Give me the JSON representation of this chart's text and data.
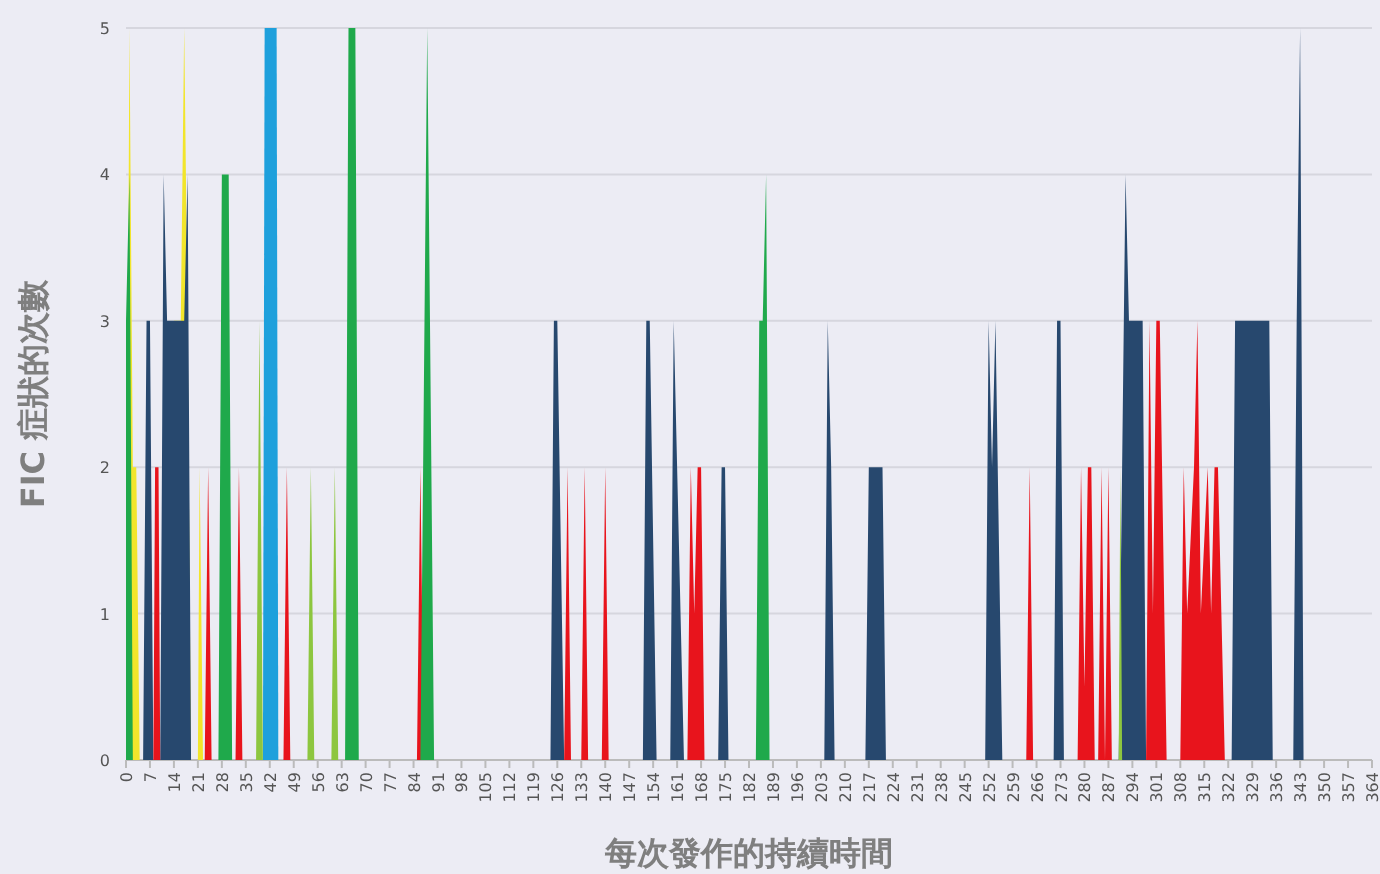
{
  "chart_data": {
    "type": "area",
    "xlabel": "每次發作的持續時間",
    "ylabel": "FIC 症狀的次數",
    "xlim": [
      0,
      364
    ],
    "ylim": [
      0,
      5
    ],
    "yticks": [
      0,
      1,
      2,
      3,
      4,
      5
    ],
    "xticks": [
      0,
      7,
      14,
      21,
      28,
      35,
      42,
      49,
      56,
      63,
      70,
      77,
      84,
      91,
      98,
      105,
      112,
      119,
      126,
      133,
      140,
      147,
      154,
      161,
      168,
      175,
      182,
      189,
      196,
      203,
      210,
      217,
      224,
      231,
      238,
      245,
      252,
      259,
      266,
      273,
      280,
      287,
      294,
      301,
      308,
      315,
      322,
      329,
      336,
      343,
      350,
      357,
      364
    ],
    "grid": "y",
    "series": [
      {
        "color": "#f2e52b",
        "x": [
          0,
          1,
          2,
          3,
          4,
          13,
          14,
          16,
          17,
          18,
          19,
          21,
          21.5,
          22.5
        ],
        "values": [
          0,
          5,
          2,
          2,
          0,
          0,
          3,
          3,
          5,
          3,
          0,
          0,
          2,
          0
        ]
      },
      {
        "color": "#27486e",
        "x": [
          5,
          6,
          7,
          8,
          10,
          11,
          12,
          17,
          18,
          19,
          124,
          125,
          126,
          128,
          151,
          152,
          153,
          155,
          159,
          160,
          161,
          163,
          173,
          174,
          175,
          176,
          204,
          205,
          206,
          207,
          216,
          217,
          221,
          222,
          251,
          252,
          253,
          254,
          256,
          271,
          272,
          273,
          274,
          290,
          292,
          293,
          297,
          298,
          323,
          324,
          334,
          335,
          341,
          342,
          343,
          344
        ],
        "values": [
          0,
          3,
          3,
          0,
          0,
          4,
          3,
          3,
          4,
          0,
          0,
          3,
          3,
          0,
          0,
          3,
          3,
          0,
          0,
          3,
          2,
          0,
          0,
          2,
          2,
          0,
          0,
          3,
          2,
          0,
          0,
          2,
          2,
          0,
          0,
          3,
          2,
          3,
          0,
          0,
          3,
          3,
          0,
          0,
          4,
          3,
          3,
          0,
          0,
          3,
          3,
          0,
          0,
          3,
          5,
          0
        ]
      },
      {
        "color": "#e8141c",
        "x": [
          8,
          8.5,
          9.5,
          10,
          23,
          24,
          25,
          32,
          33,
          34,
          46,
          47,
          48,
          85,
          86,
          87,
          128,
          129,
          130,
          133,
          134,
          135,
          139,
          140,
          141,
          164,
          165,
          166,
          167,
          168,
          169,
          263,
          264,
          265,
          278,
          279,
          280,
          281,
          282,
          283,
          284,
          285,
          286,
          287,
          288,
          298,
          299,
          300,
          301,
          302,
          304,
          308,
          309,
          310,
          312,
          313,
          314,
          316,
          317,
          318,
          319,
          321
        ],
        "values": [
          0,
          2,
          2,
          0,
          0,
          2,
          0,
          0,
          2,
          0,
          0,
          2,
          0,
          0,
          2,
          0,
          0,
          2,
          0,
          0,
          2,
          0,
          0,
          2,
          0,
          0,
          2,
          1,
          2,
          2,
          0,
          0,
          2,
          0,
          0,
          2,
          0.5,
          2,
          2,
          0,
          0,
          2,
          0,
          2,
          0,
          0,
          3,
          1,
          3,
          3,
          0,
          0,
          2,
          1,
          2,
          3,
          1,
          2,
          1,
          2,
          2,
          0
        ]
      },
      {
        "color": "#1ea0dc",
        "x": [
          40,
          40.5,
          44,
          44.5
        ],
        "values": [
          0,
          5,
          5,
          0
        ]
      },
      {
        "color": "#8dc63f",
        "x": [
          38,
          39,
          40,
          53,
          54,
          55,
          60,
          61,
          62,
          290,
          290.5,
          291
        ],
        "values": [
          0,
          3,
          0,
          0,
          2,
          0,
          0,
          2,
          0,
          0,
          2,
          0
        ]
      },
      {
        "color": "#1fa94b",
        "x": [
          0,
          1,
          2,
          27,
          28,
          30,
          31,
          64,
          65,
          67,
          68,
          86,
          88,
          90,
          184,
          185,
          186,
          187,
          188
        ],
        "values": [
          3,
          4,
          0,
          0,
          4,
          4,
          0,
          0,
          5,
          5,
          0,
          0,
          5,
          0,
          0,
          3,
          3,
          4,
          0
        ]
      }
    ]
  }
}
